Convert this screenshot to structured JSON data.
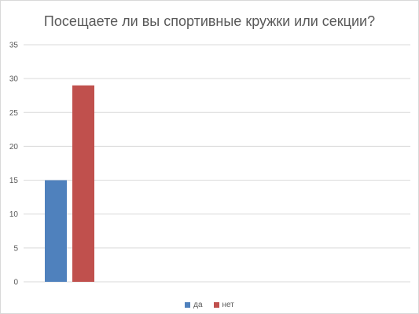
{
  "chart_data": {
    "type": "bar",
    "title": "Посещаете ли вы спортивные кружки или секции?",
    "categories": [
      ""
    ],
    "series": [
      {
        "name": "да",
        "values": [
          15
        ],
        "color": "#4F81BD"
      },
      {
        "name": "нет",
        "values": [
          29
        ],
        "color": "#C0504D"
      }
    ],
    "xlabel": "",
    "ylabel": "",
    "ylim": [
      0,
      35
    ],
    "yticks": [
      "0",
      "5",
      "10",
      "15",
      "20",
      "25",
      "30",
      "35"
    ],
    "grid": true,
    "legend_position": "bottom"
  }
}
